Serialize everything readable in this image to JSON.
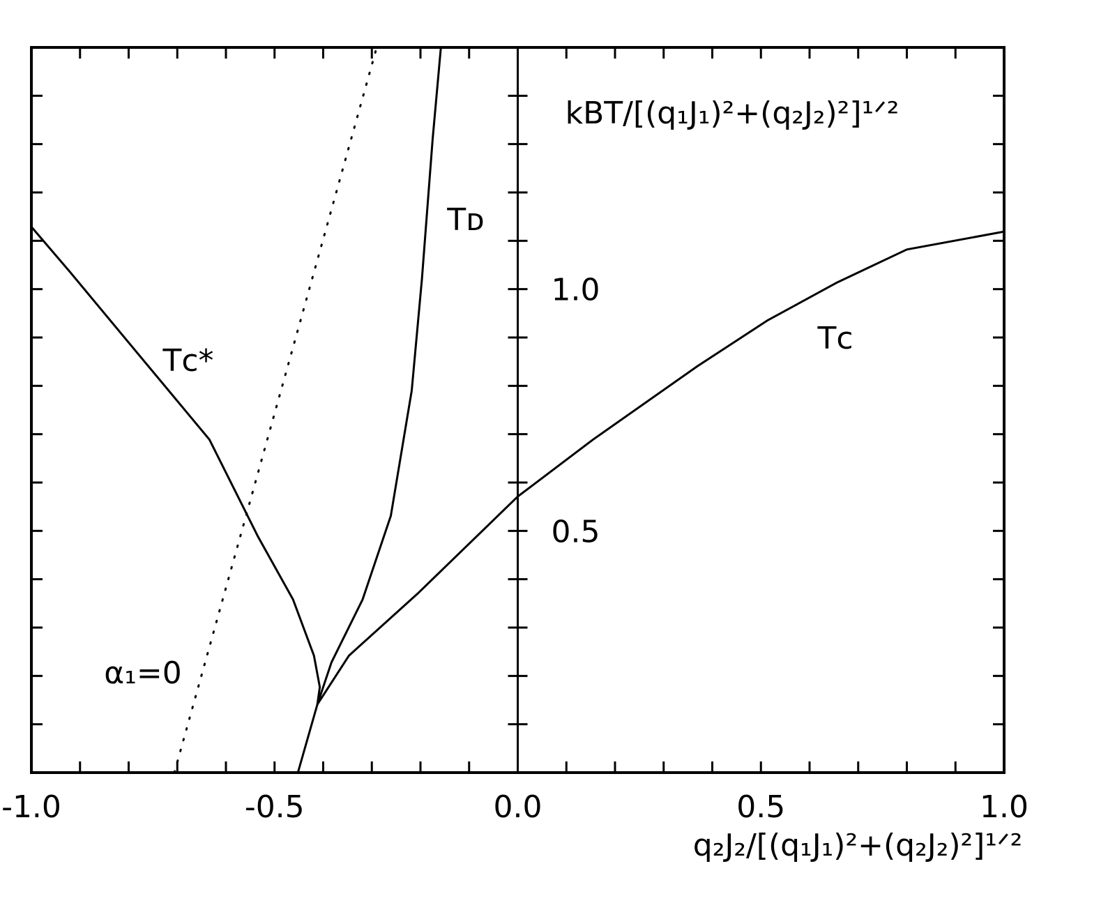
{
  "chart_data": {
    "type": "line",
    "xlabel": "q₂J₂/[(q₁J₁)²+(q₂J₂)²]¹ᐟ²",
    "ylabel": "kBT/[(q₁J₁)²+(q₂J₂)²]¹ᐟ²",
    "xlim": [
      -1,
      1
    ],
    "ylim": [
      0,
      1.5
    ],
    "xticks": [
      {
        "value": -1,
        "label": "-1.0"
      },
      -0.5,
      {
        "value": 0,
        "label": "0.0"
      },
      0.5,
      {
        "value": 1,
        "label": "1.0"
      }
    ],
    "yticks": [
      0.5,
      {
        "value": 1,
        "label": "1.0"
      }
    ],
    "minor_xticks": [
      -0.9,
      -0.8,
      -0.7,
      -0.6,
      -0.4,
      -0.3,
      -0.2,
      -0.1,
      0.1,
      0.2,
      0.3,
      0.4,
      0.6,
      0.7,
      0.8,
      0.9
    ],
    "minor_yticks": [
      0.1,
      0.2,
      0.3,
      0.4,
      0.6,
      0.7,
      0.8,
      0.9,
      1.1,
      1.2,
      1.3,
      1.4
    ],
    "series": [
      {
        "name": "Tᴄ",
        "color": "#000",
        "style": "solid",
        "x": [
          -0.452,
          -0.412,
          -0.347,
          -0.204,
          0,
          0.155,
          0.37,
          0.513,
          0.657,
          0.8,
          1.0
        ],
        "values": [
          0,
          0.141,
          0.242,
          0.372,
          0.571,
          0.689,
          0.841,
          0.935,
          1.014,
          1.082,
          1.119
        ]
      },
      {
        "name": "Tᴄ*",
        "color": "#000",
        "style": "solid",
        "x": [
          -1,
          -0.921,
          -0.778,
          -0.634,
          -0.534,
          -0.462,
          -0.419,
          -0.407,
          -0.412
        ],
        "values": [
          1.129,
          1.036,
          0.863,
          0.689,
          0.488,
          0.358,
          0.242,
          0.177,
          0.141
        ]
      },
      {
        "name": "Tᴅ",
        "color": "#000",
        "style": "solid",
        "x": [
          -0.412,
          -0.383,
          -0.319,
          -0.261,
          -0.218,
          -0.197,
          -0.175,
          -0.158
        ],
        "values": [
          0.141,
          0.228,
          0.358,
          0.531,
          0.79,
          1.021,
          1.31,
          1.5
        ]
      },
      {
        "name": "α₁=0",
        "color": "#000",
        "style": "dotted",
        "x": [
          -0.706,
          -0.29
        ],
        "values": [
          0,
          1.5
        ]
      }
    ]
  }
}
